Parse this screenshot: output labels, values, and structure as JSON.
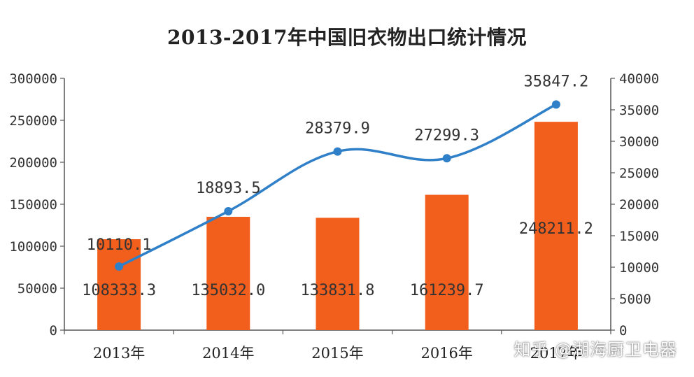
{
  "chart_data": {
    "type": "bar+line",
    "title": "2013-2017年中国旧衣物出口统计情况",
    "categories": [
      "2013年",
      "2014年",
      "2015年",
      "2016年",
      "2017年"
    ],
    "series": [
      {
        "type": "bar",
        "axis": "left",
        "values": [
          108333.3,
          135032.0,
          133831.8,
          161239.7,
          248211.2
        ],
        "labels": [
          "108333.3",
          "135032.0",
          "133831.8",
          "161239.7",
          "248211.2"
        ]
      },
      {
        "type": "line",
        "axis": "right",
        "values": [
          10110.1,
          18893.5,
          28379.9,
          27299.3,
          35847.2
        ],
        "labels": [
          "10110.1",
          "18893.5",
          "28379.9",
          "27299.3",
          "35847.2"
        ]
      }
    ],
    "y_left": {
      "range": [
        0,
        300000
      ],
      "ticks": [
        "0",
        "50000",
        "100000",
        "150000",
        "200000",
        "250000",
        "300000"
      ]
    },
    "y_right": {
      "range": [
        0,
        40000
      ],
      "ticks": [
        "0",
        "5000",
        "10000",
        "15000",
        "20000",
        "25000",
        "30000",
        "35000",
        "40000"
      ]
    },
    "grid": false,
    "legend": "none",
    "colors": {
      "bar": "#f25f1c",
      "line": "#2f80c8",
      "axis": "#555555"
    }
  },
  "watermark": "知乎 @湖海厨卫电器"
}
